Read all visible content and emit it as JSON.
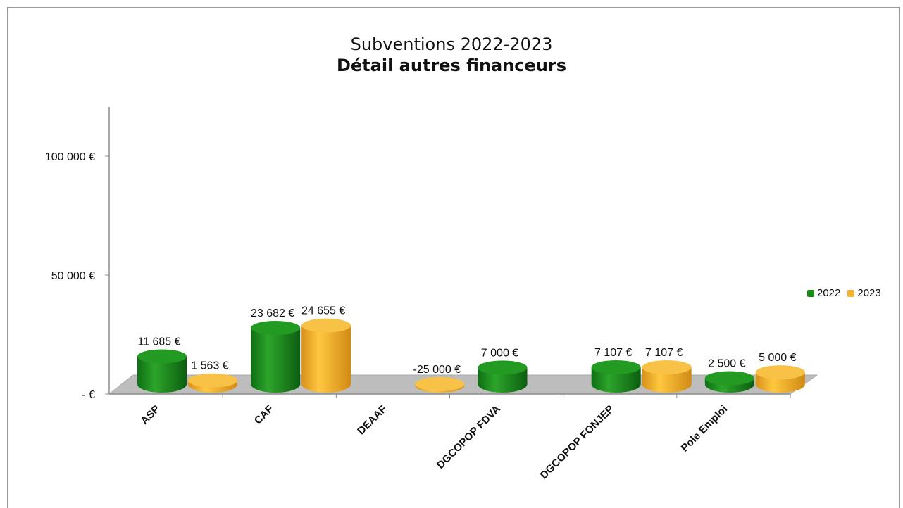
{
  "chart_data": {
    "type": "bar",
    "title": "Subventions 2022-2023",
    "subtitle": "Détail autres financeurs",
    "categories": [
      "ASP",
      "CAF",
      "DEAAF",
      "DGCOPOP FDVA",
      "DGCOPOP FONJEP",
      "Pole Emploi"
    ],
    "series": [
      {
        "name": "2022",
        "values": [
          11685,
          23682,
          null,
          7000,
          7107,
          2500
        ],
        "labels": [
          "11 685 €",
          "23 682 €",
          "",
          "7 000 €",
          "7 107 €",
          "2 500 €"
        ],
        "color": "#1a8a1a"
      },
      {
        "name": "2023",
        "values": [
          1563,
          24655,
          -25000,
          null,
          7107,
          5000
        ],
        "labels": [
          "1 563 €",
          "24 655 €",
          "-25 000 €",
          "",
          "7 107 €",
          "5 000 €"
        ],
        "color": "#f2b233"
      }
    ],
    "y_ticks": [
      {
        "value": 0,
        "label": "-   €"
      },
      {
        "value": 50000,
        "label": "50 000 €"
      },
      {
        "value": 100000,
        "label": "100 000 €"
      }
    ],
    "ylim": [
      0,
      120000
    ],
    "grid": false,
    "legend_position": "right",
    "style": "3d-cylinder"
  }
}
